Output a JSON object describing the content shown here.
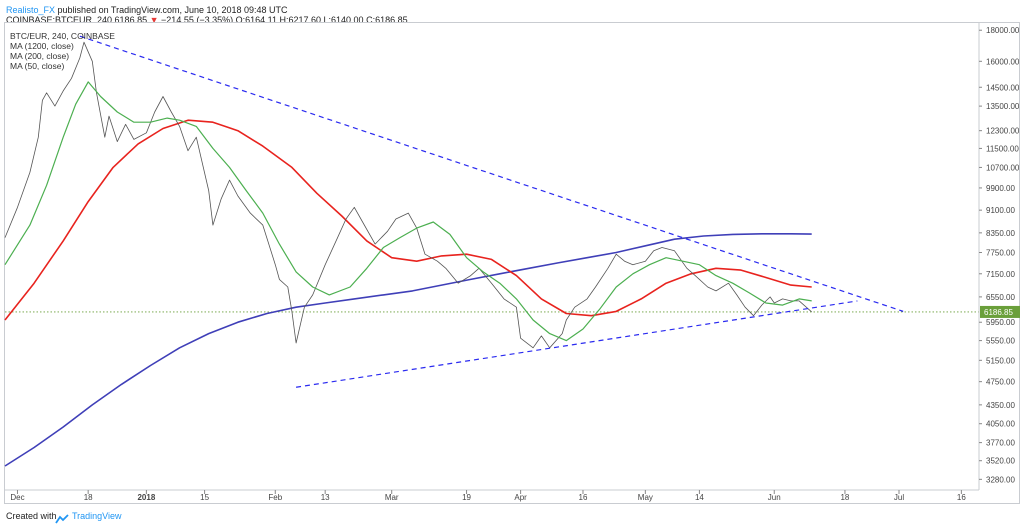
{
  "header": {
    "author": "Realisto_FX",
    "published": "published on TradingView.com, June 10, 2018 09:48 UTC",
    "quote_symbol": "COINBASE:BTCEUR, 240",
    "price": "6186.85",
    "change": "−214.55 (−3.35%)",
    "ohlc": "O:6164.11  H:6217.60  L:6140.00  C:6186.85"
  },
  "legend": {
    "symbol": "BTC/EUR, 240, COINBASE",
    "ma1200": "MA (1200, close)",
    "ma200": "MA (200, close)",
    "ma50": "MA (50, close)"
  },
  "footer": {
    "created_with": "Created with",
    "brand": "TradingView"
  },
  "colors": {
    "price": "#555555",
    "ma1200": "#3f3fb8",
    "ma200": "#e8231e",
    "ma50": "#4caf50",
    "trendline": "#2a2af0",
    "current_price_line": "#6a9f3a"
  },
  "chart_data": {
    "type": "line",
    "title": "BTC/EUR, 240, COINBASE",
    "scale": "log",
    "y_axis": {
      "ticks": [
        18000,
        16000,
        14500,
        13500,
        12300,
        11500,
        10700,
        9900,
        9100,
        8350,
        7750,
        7150,
        6550,
        5950,
        5550,
        5150,
        4750,
        4350,
        4050,
        3770,
        3520,
        3280
      ],
      "range": [
        3150,
        18500
      ]
    },
    "x_axis": {
      "ticks": [
        {
          "label": "Dec",
          "date": "2017-12-01"
        },
        {
          "label": "18",
          "date": "2017-12-18"
        },
        {
          "label": "2018",
          "date": "2018-01-01"
        },
        {
          "label": "15",
          "date": "2018-01-15"
        },
        {
          "label": "Feb",
          "date": "2018-02-01"
        },
        {
          "label": "13",
          "date": "2018-02-13"
        },
        {
          "label": "Mar",
          "date": "2018-03-01"
        },
        {
          "label": "19",
          "date": "2018-03-19"
        },
        {
          "label": "Apr",
          "date": "2018-04-01"
        },
        {
          "label": "16",
          "date": "2018-04-16"
        },
        {
          "label": "May",
          "date": "2018-05-01"
        },
        {
          "label": "14",
          "date": "2018-05-14"
        },
        {
          "label": "Jun",
          "date": "2018-06-01"
        },
        {
          "label": "18",
          "date": "2018-06-18"
        },
        {
          "label": "Jul",
          "date": "2018-07-01"
        },
        {
          "label": "16",
          "date": "2018-07-16"
        }
      ],
      "range": [
        "2017-11-28",
        "2018-07-20"
      ]
    },
    "current_price": 6186.85,
    "series": [
      {
        "key": "price",
        "x": [
          "2017-11-28",
          "2017-12-01",
          "2017-12-04",
          "2017-12-06",
          "2017-12-07",
          "2017-12-08",
          "2017-12-10",
          "2017-12-12",
          "2017-12-14",
          "2017-12-16",
          "2017-12-17",
          "2017-12-19",
          "2017-12-20",
          "2017-12-22",
          "2017-12-23",
          "2017-12-25",
          "2017-12-27",
          "2017-12-29",
          "2018-01-01",
          "2018-01-03",
          "2018-01-05",
          "2018-01-07",
          "2018-01-09",
          "2018-01-11",
          "2018-01-13",
          "2018-01-16",
          "2018-01-17",
          "2018-01-19",
          "2018-01-21",
          "2018-01-23",
          "2018-01-26",
          "2018-01-29",
          "2018-02-01",
          "2018-02-02",
          "2018-02-04",
          "2018-02-05",
          "2018-02-06",
          "2018-02-08",
          "2018-02-10",
          "2018-02-13",
          "2018-02-16",
          "2018-02-18",
          "2018-02-20",
          "2018-02-22",
          "2018-02-25",
          "2018-02-28",
          "2018-03-02",
          "2018-03-05",
          "2018-03-07",
          "2018-03-09",
          "2018-03-12",
          "2018-03-14",
          "2018-03-17",
          "2018-03-20",
          "2018-03-22",
          "2018-03-25",
          "2018-03-28",
          "2018-03-31",
          "2018-04-01",
          "2018-04-04",
          "2018-04-06",
          "2018-04-08",
          "2018-04-11",
          "2018-04-12",
          "2018-04-14",
          "2018-04-17",
          "2018-04-19",
          "2018-04-22",
          "2018-04-24",
          "2018-04-26",
          "2018-04-28",
          "2018-05-01",
          "2018-05-03",
          "2018-05-05",
          "2018-05-08",
          "2018-05-11",
          "2018-05-13",
          "2018-05-16",
          "2018-05-18",
          "2018-05-21",
          "2018-05-23",
          "2018-05-25",
          "2018-05-27",
          "2018-05-29",
          "2018-05-31",
          "2018-06-01",
          "2018-06-03",
          "2018-06-05",
          "2018-06-07",
          "2018-06-10"
        ],
        "y": [
          8200,
          9200,
          10500,
          12000,
          13800,
          14200,
          13500,
          14300,
          15000,
          16200,
          17200,
          16000,
          14200,
          12000,
          13000,
          11800,
          12600,
          11900,
          12200,
          13200,
          14000,
          13200,
          12500,
          11400,
          12000,
          9800,
          8600,
          9500,
          10200,
          9600,
          9000,
          8600,
          7400,
          7000,
          6800,
          6200,
          5500,
          6300,
          6600,
          7400,
          8200,
          8800,
          9200,
          8700,
          8000,
          8400,
          8800,
          9000,
          8500,
          7700,
          7500,
          7300,
          6900,
          7100,
          7300,
          6900,
          6500,
          6300,
          5600,
          5400,
          5650,
          5400,
          5700,
          6000,
          6300,
          6500,
          6800,
          7300,
          7700,
          7500,
          7400,
          7500,
          7800,
          7900,
          7800,
          7300,
          7100,
          6800,
          6700,
          6900,
          6600,
          6300,
          6100,
          6350,
          6550,
          6400,
          6500,
          6450,
          6450,
          6186.85
        ]
      },
      {
        "key": "ma50",
        "x": [
          "2017-11-28",
          "2017-12-04",
          "2017-12-08",
          "2017-12-12",
          "2017-12-15",
          "2017-12-18",
          "2017-12-21",
          "2017-12-25",
          "2017-12-29",
          "2018-01-02",
          "2018-01-06",
          "2018-01-09",
          "2018-01-13",
          "2018-01-17",
          "2018-01-21",
          "2018-01-25",
          "2018-01-29",
          "2018-02-02",
          "2018-02-06",
          "2018-02-10",
          "2018-02-14",
          "2018-02-19",
          "2018-02-23",
          "2018-02-27",
          "2018-03-03",
          "2018-03-07",
          "2018-03-11",
          "2018-03-15",
          "2018-03-19",
          "2018-03-23",
          "2018-03-27",
          "2018-03-31",
          "2018-04-04",
          "2018-04-08",
          "2018-04-12",
          "2018-04-16",
          "2018-04-20",
          "2018-04-24",
          "2018-04-28",
          "2018-05-02",
          "2018-05-06",
          "2018-05-10",
          "2018-05-14",
          "2018-05-18",
          "2018-05-22",
          "2018-05-26",
          "2018-05-30",
          "2018-06-03",
          "2018-06-07",
          "2018-06-10"
        ],
        "y": [
          7400,
          8600,
          10000,
          12000,
          13600,
          14800,
          14000,
          13200,
          12700,
          12700,
          12900,
          12800,
          12500,
          11500,
          10700,
          9800,
          9000,
          8000,
          7200,
          6800,
          6600,
          6800,
          7300,
          7900,
          8200,
          8500,
          8700,
          8300,
          7600,
          7200,
          6900,
          6500,
          6000,
          5700,
          5550,
          5800,
          6250,
          6800,
          7150,
          7400,
          7600,
          7500,
          7400,
          7100,
          6900,
          6650,
          6400,
          6350,
          6500,
          6450
        ]
      },
      {
        "key": "ma200",
        "x": [
          "2017-11-28",
          "2017-12-05",
          "2017-12-12",
          "2017-12-18",
          "2017-12-24",
          "2017-12-30",
          "2018-01-05",
          "2018-01-11",
          "2018-01-17",
          "2018-01-23",
          "2018-01-29",
          "2018-02-05",
          "2018-02-11",
          "2018-02-17",
          "2018-02-23",
          "2018-03-01",
          "2018-03-07",
          "2018-03-13",
          "2018-03-19",
          "2018-03-25",
          "2018-03-31",
          "2018-04-06",
          "2018-04-12",
          "2018-04-18",
          "2018-04-24",
          "2018-04-30",
          "2018-05-06",
          "2018-05-12",
          "2018-05-18",
          "2018-05-24",
          "2018-05-30",
          "2018-06-05",
          "2018-06-10"
        ],
        "y": [
          6000,
          6900,
          8100,
          9400,
          10700,
          11700,
          12400,
          12800,
          12700,
          12300,
          11600,
          10700,
          9700,
          8900,
          8100,
          7600,
          7500,
          7650,
          7700,
          7550,
          7100,
          6500,
          6150,
          6100,
          6200,
          6500,
          6900,
          7150,
          7300,
          7250,
          7050,
          6850,
          6800
        ]
      },
      {
        "key": "ma1200",
        "x": [
          "2017-11-28",
          "2017-12-05",
          "2017-12-12",
          "2017-12-19",
          "2017-12-26",
          "2018-01-02",
          "2018-01-09",
          "2018-01-16",
          "2018-01-23",
          "2018-01-30",
          "2018-02-06",
          "2018-02-13",
          "2018-02-20",
          "2018-02-27",
          "2018-03-06",
          "2018-03-13",
          "2018-03-20",
          "2018-03-27",
          "2018-04-03",
          "2018-04-10",
          "2018-04-17",
          "2018-04-24",
          "2018-05-01",
          "2018-05-08",
          "2018-05-15",
          "2018-05-22",
          "2018-05-29",
          "2018-06-05",
          "2018-06-10"
        ],
        "y": [
          3450,
          3700,
          4000,
          4350,
          4700,
          5050,
          5400,
          5700,
          5950,
          6150,
          6300,
          6400,
          6500,
          6600,
          6700,
          6850,
          7000,
          7150,
          7300,
          7450,
          7600,
          7750,
          7950,
          8150,
          8250,
          8300,
          8320,
          8320,
          8310
        ]
      }
    ],
    "annotations": [
      {
        "type": "trendline",
        "style": "dashed",
        "from": {
          "x": "2017-12-16",
          "y": 17600
        },
        "to": {
          "x": "2018-07-02",
          "y": 6200
        }
      },
      {
        "type": "trendline",
        "style": "dashed",
        "from": {
          "x": "2018-02-06",
          "y": 4650
        },
        "to": {
          "x": "2018-06-21",
          "y": 6450
        }
      }
    ]
  }
}
